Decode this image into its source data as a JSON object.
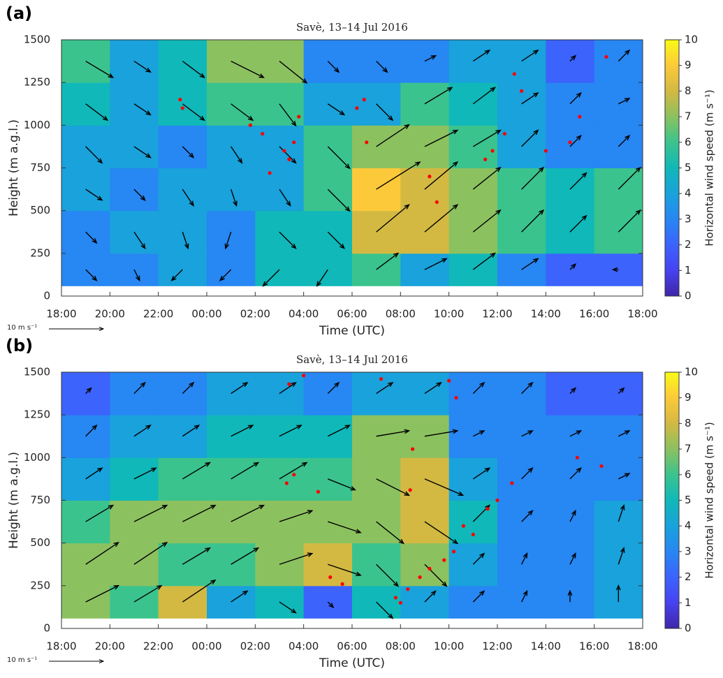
{
  "chart_data": [
    {
      "type": "heatmap",
      "panel_label": "(a)",
      "title": "Savè, 13–14 Jul 2016",
      "xlabel": "Time (UTC)",
      "ylabel": "Height (m a.g.l.)",
      "colorbar_label": "Horizontal wind speed (m s⁻¹)",
      "quiver_key_label": "10 m s⁻¹",
      "quiver_key_value": 10,
      "xlim": [
        0,
        24
      ],
      "xticks": [
        {
          "value": 0,
          "label": "18:00"
        },
        {
          "value": 2,
          "label": "20:00"
        },
        {
          "value": 4,
          "label": "22:00"
        },
        {
          "value": 6,
          "label": "00:00"
        },
        {
          "value": 8,
          "label": "02:00"
        },
        {
          "value": 10,
          "label": "04:00"
        },
        {
          "value": 12,
          "label": "06:00"
        },
        {
          "value": 14,
          "label": "08:00"
        },
        {
          "value": 16,
          "label": "10:00"
        },
        {
          "value": 18,
          "label": "12:00"
        },
        {
          "value": 20,
          "label": "14:00"
        },
        {
          "value": 22,
          "label": "16:00"
        },
        {
          "value": 24,
          "label": "18:00"
        }
      ],
      "ylim": [
        0,
        1500
      ],
      "yticks": [
        0,
        250,
        500,
        750,
        1000,
        1250,
        1500
      ],
      "clim": [
        0,
        10
      ],
      "cticks": [
        0,
        1,
        2,
        3,
        4,
        5,
        6,
        7,
        8,
        9,
        10
      ],
      "colormap": [
        "#3e26a8",
        "#4743f0",
        "#3c63fc",
        "#2787f3",
        "#19a2db",
        "#10b8b9",
        "#3bc38d",
        "#8cc160",
        "#d3b942",
        "#fcc93a",
        "#f9fb15"
      ],
      "x_edges": [
        0,
        2,
        4,
        6,
        8,
        10,
        12,
        14,
        16,
        18,
        20,
        22,
        24
      ],
      "y_edges": [
        60,
        250,
        500,
        750,
        1000,
        1250,
        1500
      ],
      "z": [
        [
          3,
          3,
          4,
          3,
          5,
          5,
          6,
          4,
          5,
          3,
          2,
          2
        ],
        [
          3,
          4,
          4,
          3,
          5,
          5,
          8,
          8,
          7,
          6,
          5,
          6
        ],
        [
          4,
          3,
          4,
          4,
          4,
          6,
          9,
          8,
          7,
          6,
          5,
          6
        ],
        [
          4,
          4,
          3,
          4,
          4,
          6,
          7,
          7,
          6,
          4,
          3,
          3
        ],
        [
          5,
          4,
          5,
          6,
          6,
          4,
          4,
          6,
          5,
          4,
          3,
          3
        ],
        [
          6,
          4,
          5,
          7,
          7,
          3,
          3,
          3,
          4,
          4,
          2,
          3
        ]
      ],
      "u": [
        [
          2,
          1,
          -2,
          -2,
          -3,
          -2,
          4,
          4,
          4,
          3,
          1,
          -1
        ],
        [
          2,
          2,
          1,
          -1,
          3,
          3,
          6,
          6,
          5,
          4,
          3,
          4
        ],
        [
          3,
          2,
          2,
          1,
          2,
          4,
          8,
          6,
          5,
          4,
          3,
          4
        ],
        [
          3,
          3,
          2,
          2,
          3,
          4,
          6,
          6,
          5,
          3,
          2,
          2
        ],
        [
          4,
          3,
          4,
          4,
          3,
          3,
          3,
          5,
          4,
          3,
          2,
          2
        ],
        [
          5,
          3,
          4,
          6,
          5,
          2,
          2,
          2,
          3,
          3,
          1,
          2
        ]
      ],
      "v": [
        [
          -2,
          -2,
          -2,
          -2,
          -3,
          -3,
          3,
          2,
          3,
          2,
          1,
          0
        ],
        [
          -2,
          -3,
          -3,
          -3,
          -3,
          -3,
          5,
          5,
          4,
          4,
          3,
          4
        ],
        [
          -2,
          -2,
          -3,
          -3,
          -3,
          -4,
          5,
          5,
          4,
          4,
          3,
          4
        ],
        [
          -3,
          -2,
          -2,
          -3,
          -3,
          -4,
          4,
          3,
          3,
          3,
          2,
          2
        ],
        [
          -3,
          -2,
          -3,
          -3,
          -4,
          -2,
          -3,
          3,
          3,
          2,
          2,
          1
        ],
        [
          -3,
          -2,
          -3,
          -3,
          -4,
          -2,
          -2,
          1,
          2,
          2,
          1,
          2
        ]
      ],
      "quiver_color": "#000000",
      "points": {
        "color": "#ff0000",
        "x": [
          4.9,
          5.0,
          7.8,
          8.3,
          9.2,
          9.4,
          9.6,
          9.8,
          8.6,
          12.5,
          12.2,
          12.6,
          15.2,
          15.5,
          17.5,
          17.8,
          18.3,
          18.7,
          19.0,
          20.0,
          21.0,
          21.4,
          22.5
        ],
        "y": [
          1150,
          1100,
          1000,
          950,
          850,
          800,
          900,
          1050,
          720,
          1150,
          1100,
          900,
          700,
          550,
          800,
          850,
          950,
          1300,
          1200,
          850,
          900,
          1050,
          1400
        ]
      }
    },
    {
      "type": "heatmap",
      "panel_label": "(b)",
      "title": "Savè, 13–14 Jul 2016",
      "xlabel": "Time (UTC)",
      "ylabel": "Height (m a.g.l.)",
      "colorbar_label": "Horizontal wind speed (m s⁻¹)",
      "quiver_key_label": "10 m s⁻¹",
      "quiver_key_value": 10,
      "xlim": [
        0,
        24
      ],
      "xticks": [
        {
          "value": 0,
          "label": "18:00"
        },
        {
          "value": 2,
          "label": "20:00"
        },
        {
          "value": 4,
          "label": "22:00"
        },
        {
          "value": 6,
          "label": "00:00"
        },
        {
          "value": 8,
          "label": "02:00"
        },
        {
          "value": 10,
          "label": "04:00"
        },
        {
          "value": 12,
          "label": "06:00"
        },
        {
          "value": 14,
          "label": "08:00"
        },
        {
          "value": 16,
          "label": "10:00"
        },
        {
          "value": 18,
          "label": "12:00"
        },
        {
          "value": 20,
          "label": "14:00"
        },
        {
          "value": 22,
          "label": "16:00"
        },
        {
          "value": 24,
          "label": "18:00"
        }
      ],
      "ylim": [
        0,
        1500
      ],
      "yticks": [
        0,
        250,
        500,
        750,
        1000,
        1250,
        1500
      ],
      "clim": [
        0,
        10
      ],
      "cticks": [
        0,
        1,
        2,
        3,
        4,
        5,
        6,
        7,
        8,
        9,
        10
      ],
      "colormap": [
        "#3e26a8",
        "#4743f0",
        "#3c63fc",
        "#2787f3",
        "#19a2db",
        "#10b8b9",
        "#3bc38d",
        "#8cc160",
        "#d3b942",
        "#fcc93a",
        "#f9fb15"
      ],
      "x_edges": [
        0,
        2,
        4,
        6,
        8,
        10,
        12,
        14,
        16,
        18,
        20,
        22,
        24
      ],
      "y_edges": [
        60,
        250,
        500,
        750,
        1000,
        1250,
        1500
      ],
      "z": [
        [
          7,
          6,
          8,
          4,
          5,
          2,
          5,
          4,
          3,
          3,
          3,
          4
        ],
        [
          7,
          7,
          6,
          6,
          7,
          8,
          6,
          7,
          4,
          3,
          3,
          4
        ],
        [
          6,
          7,
          7,
          7,
          7,
          7,
          7,
          8,
          5,
          3,
          3,
          4
        ],
        [
          4,
          5,
          6,
          6,
          6,
          6,
          7,
          8,
          4,
          3,
          3,
          3
        ],
        [
          3,
          4,
          4,
          5,
          5,
          5,
          7,
          7,
          3,
          3,
          3,
          3
        ],
        [
          2,
          3,
          3,
          4,
          4,
          3,
          4,
          4,
          3,
          3,
          2,
          2
        ]
      ],
      "u": [
        [
          6,
          5,
          6,
          3,
          3,
          1,
          3,
          2,
          2,
          1,
          0,
          0
        ],
        [
          6,
          6,
          5,
          5,
          6,
          6,
          4,
          4,
          2,
          1,
          1,
          1
        ],
        [
          5,
          6,
          6,
          6,
          6,
          6,
          5,
          6,
          3,
          2,
          1,
          1
        ],
        [
          3,
          4,
          5,
          5,
          5,
          5,
          6,
          7,
          3,
          2,
          2,
          2
        ],
        [
          2,
          3,
          3,
          4,
          4,
          4,
          6,
          6,
          2,
          2,
          2,
          2
        ],
        [
          1,
          2,
          2,
          3,
          3,
          2,
          3,
          3,
          2,
          2,
          1,
          1
        ]
      ],
      "v": [
        [
          3,
          3,
          4,
          2,
          -2,
          -1,
          -3,
          2,
          2,
          2,
          2,
          3
        ],
        [
          4,
          4,
          3,
          3,
          2,
          -2,
          -4,
          -4,
          2,
          2,
          2,
          3
        ],
        [
          3,
          3,
          3,
          3,
          2,
          -2,
          -4,
          -4,
          3,
          2,
          2,
          3
        ],
        [
          2,
          2,
          3,
          3,
          3,
          -2,
          -3,
          -3,
          2,
          2,
          2,
          1
        ],
        [
          2,
          2,
          2,
          2,
          2,
          2,
          1,
          1,
          1,
          1,
          1,
          1
        ],
        [
          1,
          2,
          2,
          2,
          2,
          2,
          2,
          2,
          2,
          2,
          1,
          1
        ]
      ],
      "quiver_color": "#000000",
      "points": {
        "color": "#ff0000",
        "x": [
          9.4,
          10.0,
          9.3,
          9.6,
          10.6,
          11.1,
          11.6,
          13.2,
          14.5,
          14.4,
          13.8,
          14.0,
          14.3,
          14.8,
          15.2,
          15.8,
          16.2,
          16.6,
          17.0,
          17.6,
          18.0,
          16.3,
          16.0,
          21.3,
          22.3,
          18.6
        ],
        "y": [
          1430,
          1480,
          850,
          900,
          800,
          300,
          260,
          1460,
          1050,
          810,
          180,
          150,
          230,
          300,
          350,
          400,
          450,
          600,
          550,
          700,
          750,
          1350,
          1450,
          1000,
          950,
          850
        ]
      }
    }
  ]
}
